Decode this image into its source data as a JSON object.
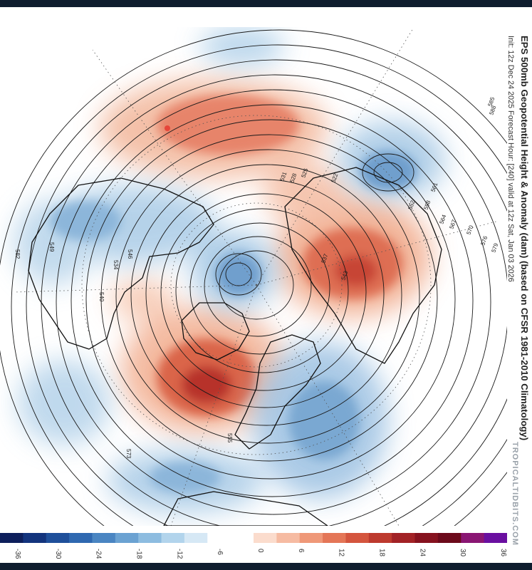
{
  "title": "EPS 500mb Geopotential Height & Anomaly (dam) (based on CFSR 1981-2010 Climatology)",
  "subtitle": "Init: 12z Dec 24 2025   Forecast Hour: [240]   valid at 12z Sat, Jan 03 2026",
  "brand": "TROPICALTIDBITS.COM",
  "colorbar": {
    "ticks": [
      "-36",
      "-30",
      "-24",
      "-18",
      "-12",
      "-6",
      "0",
      "6",
      "12",
      "18",
      "24",
      "30",
      "36"
    ],
    "colors": [
      "#0d1f5b",
      "#13347d",
      "#1f4f9a",
      "#2f68b0",
      "#4a85c2",
      "#6ba2d2",
      "#8dbce0",
      "#b2d4ec",
      "#d6e8f5",
      "#ffffff",
      "#ffffff",
      "#fbdccd",
      "#f6bba2",
      "#ef9878",
      "#e47657",
      "#d4553e",
      "#bd3a2e",
      "#a22226",
      "#86121f",
      "#6c0a1b",
      "#8a1673",
      "#6a0fa0"
    ]
  },
  "contour_labels": [
    "522",
    "525",
    "528",
    "531",
    "537",
    "543",
    "546",
    "552",
    "558",
    "561",
    "564",
    "567",
    "570",
    "573",
    "576",
    "579",
    "582",
    "585",
    "588",
    "540",
    "549",
    "555",
    "534"
  ],
  "colors": {
    "positive": "#e0603f",
    "negative": "#5b93c8",
    "background": "#0f1d2e"
  }
}
